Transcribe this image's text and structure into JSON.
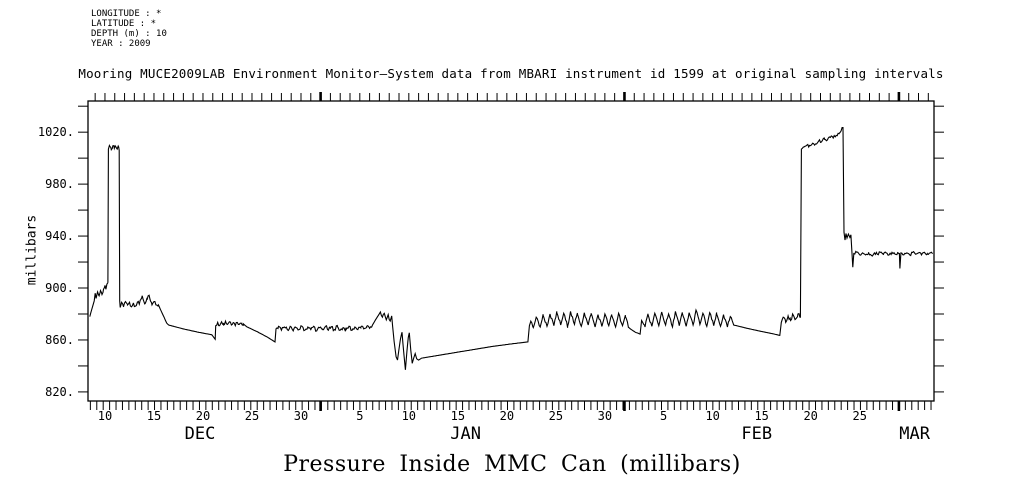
{
  "header": {
    "meta_lines": [
      "LONGITUDE : *",
      "LATITUDE : *",
      "DEPTH (m) : 10",
      "YEAR : 2009"
    ],
    "title": "Mooring MUCE2009LAB Environment Monitor—System data from MBARI instrument id 1599 at original sampling intervals"
  },
  "footer": {
    "caption": "Pressure Inside MMC Can (millibars)"
  },
  "chart_data": {
    "type": "line",
    "title": "Pressure Inside MMC Can (millibars)",
    "xlabel": "",
    "ylabel": "millibars",
    "x_unit": "day of season (Dec 1 = day 1), Dec 2009 - Mar",
    "xlim": [
      8.27,
      94.58
    ],
    "ylim": [
      813,
      1044
    ],
    "grid": false,
    "legend": "none",
    "line_color": "#000000",
    "yticks": {
      "minor_step": 20,
      "labeled": [
        {
          "value": 820,
          "label": "820."
        },
        {
          "value": 860,
          "label": "860."
        },
        {
          "value": 900,
          "label": "900."
        },
        {
          "value": 940,
          "label": "940."
        },
        {
          "value": 980,
          "label": "980."
        },
        {
          "value": 1020,
          "label": "1020."
        }
      ]
    },
    "xticks": {
      "top_step_days": 1,
      "bottom_step_days": 0.6547,
      "month_start_days": [
        32,
        63,
        91
      ],
      "labeled_days": [
        {
          "day": 10,
          "label": "10"
        },
        {
          "day": 15,
          "label": "15"
        },
        {
          "day": 20,
          "label": "20"
        },
        {
          "day": 25,
          "label": "25"
        },
        {
          "day": 30,
          "label": "30"
        },
        {
          "day": 36,
          "label": "5"
        },
        {
          "day": 41,
          "label": "10"
        },
        {
          "day": 46,
          "label": "15"
        },
        {
          "day": 51,
          "label": "20"
        },
        {
          "day": 56,
          "label": "25"
        },
        {
          "day": 61,
          "label": "30"
        },
        {
          "day": 67,
          "label": "5"
        },
        {
          "day": 72,
          "label": "10"
        },
        {
          "day": 77,
          "label": "15"
        },
        {
          "day": 82,
          "label": "20"
        },
        {
          "day": 87,
          "label": "25"
        }
      ]
    },
    "months": [
      {
        "label": "DEC",
        "day": 19.7
      },
      {
        "label": "JAN",
        "day": 46.8
      },
      {
        "label": "FEB",
        "day": 76.5
      },
      {
        "label": "MAR",
        "day": 92.6
      }
    ],
    "series": [
      {
        "name": "pressure_millibars",
        "points": [
          [
            8.45,
            878
          ],
          [
            8.6,
            882
          ],
          [
            8.75,
            886
          ],
          [
            8.9,
            890
          ],
          [
            9.0,
            896
          ],
          [
            9.1,
            892
          ],
          [
            9.25,
            897
          ],
          [
            9.4,
            894
          ],
          [
            9.55,
            898
          ],
          [
            9.7,
            895
          ],
          [
            9.85,
            899
          ],
          [
            10.0,
            902
          ],
          [
            10.1,
            899
          ],
          [
            10.2,
            903
          ],
          [
            10.3,
            904
          ],
          [
            10.35,
            1007
          ],
          [
            10.5,
            1009
          ],
          [
            10.65,
            1006.5
          ],
          [
            10.8,
            1009.5
          ],
          [
            10.95,
            1007.5
          ],
          [
            11.1,
            1009
          ],
          [
            11.25,
            1007
          ],
          [
            11.4,
            1008.5
          ],
          [
            11.45,
            1006
          ],
          [
            11.5,
            890
          ],
          [
            11.55,
            885
          ],
          [
            11.7,
            889
          ],
          [
            11.9,
            886
          ],
          [
            12.1,
            889.5
          ],
          [
            12.3,
            887
          ],
          [
            12.5,
            889
          ],
          [
            12.7,
            885.5
          ],
          [
            12.9,
            888.5
          ],
          [
            13.1,
            886
          ],
          [
            13.3,
            889
          ],
          [
            13.5,
            887.5
          ],
          [
            13.65,
            891
          ],
          [
            13.8,
            894
          ],
          [
            13.95,
            890
          ],
          [
            14.1,
            888
          ],
          [
            14.3,
            891
          ],
          [
            14.5,
            894.5
          ],
          [
            14.65,
            890
          ],
          [
            14.8,
            887
          ],
          [
            15.0,
            889.5
          ],
          [
            15.2,
            887
          ],
          [
            15.45,
            887
          ],
          [
            16.3,
            873
          ],
          [
            16.5,
            871.5
          ],
          [
            18.0,
            868.5
          ],
          [
            19.5,
            866
          ],
          [
            20.9,
            864
          ],
          [
            21.25,
            860.5
          ],
          [
            21.3,
            871
          ],
          [
            21.5,
            873.5
          ],
          [
            21.7,
            871
          ],
          [
            21.9,
            874
          ],
          [
            22.1,
            871.5
          ],
          [
            22.3,
            874.5
          ],
          [
            22.5,
            872
          ],
          [
            22.7,
            874
          ],
          [
            22.9,
            871.5
          ],
          [
            23.1,
            873.5
          ],
          [
            23.3,
            871
          ],
          [
            23.5,
            873.5
          ],
          [
            23.7,
            872
          ],
          [
            23.9,
            873
          ],
          [
            24.1,
            872.5
          ],
          [
            24.5,
            870
          ],
          [
            25.5,
            866.5
          ],
          [
            26.5,
            862.5
          ],
          [
            27.35,
            858.5
          ],
          [
            27.45,
            868.5
          ],
          [
            27.7,
            870.5
          ],
          [
            28.0,
            867.5
          ],
          [
            28.3,
            870
          ],
          [
            28.6,
            868
          ],
          [
            28.9,
            870.5
          ],
          [
            29.2,
            867
          ],
          [
            29.5,
            869.5
          ],
          [
            29.8,
            868
          ],
          [
            30.1,
            870.5
          ],
          [
            30.4,
            867.5
          ],
          [
            30.7,
            870
          ],
          [
            31.0,
            868
          ],
          [
            31.3,
            870.5
          ],
          [
            31.6,
            867
          ],
          [
            31.9,
            869.5
          ],
          [
            32.2,
            868
          ],
          [
            32.5,
            870.5
          ],
          [
            32.8,
            867.5
          ],
          [
            33.1,
            870
          ],
          [
            33.4,
            868
          ],
          [
            33.7,
            870.5
          ],
          [
            34.0,
            867.5
          ],
          [
            34.3,
            869.5
          ],
          [
            34.6,
            868
          ],
          [
            34.9,
            870.5
          ],
          [
            35.2,
            867.5
          ],
          [
            35.5,
            870
          ],
          [
            35.8,
            868
          ],
          [
            36.1,
            870
          ],
          [
            36.4,
            868.5
          ],
          [
            36.7,
            870.5
          ],
          [
            37.0,
            869
          ],
          [
            37.3,
            871.5
          ],
          [
            37.6,
            875.5
          ],
          [
            37.9,
            879
          ],
          [
            38.1,
            881.5
          ],
          [
            38.3,
            877.5
          ],
          [
            38.5,
            880.5
          ],
          [
            38.7,
            875.5
          ],
          [
            38.9,
            879.5
          ],
          [
            39.1,
            874.5
          ],
          [
            39.25,
            878.5
          ],
          [
            39.5,
            859
          ],
          [
            39.7,
            847
          ],
          [
            39.85,
            844.5
          ],
          [
            40.0,
            853
          ],
          [
            40.15,
            861
          ],
          [
            40.3,
            866
          ],
          [
            40.5,
            849
          ],
          [
            40.65,
            837
          ],
          [
            40.8,
            851
          ],
          [
            40.95,
            862
          ],
          [
            41.05,
            865.5
          ],
          [
            41.2,
            852
          ],
          [
            41.35,
            842
          ],
          [
            41.5,
            846
          ],
          [
            41.65,
            849.5
          ],
          [
            41.8,
            845.5
          ],
          [
            42.0,
            844.5
          ],
          [
            42.3,
            846
          ],
          [
            43.5,
            847.5
          ],
          [
            45.5,
            850
          ],
          [
            47.5,
            852.5
          ],
          [
            49.5,
            855
          ],
          [
            51.5,
            857
          ],
          [
            53.15,
            858.5
          ],
          [
            53.3,
            871
          ],
          [
            53.45,
            874.5
          ],
          [
            53.7,
            869.5
          ],
          [
            54.0,
            877.5
          ],
          [
            54.4,
            870
          ],
          [
            54.7,
            879
          ],
          [
            55.1,
            870.5
          ],
          [
            55.4,
            880
          ],
          [
            55.8,
            871
          ],
          [
            56.1,
            881
          ],
          [
            56.5,
            871.5
          ],
          [
            56.8,
            880.5
          ],
          [
            57.2,
            870.5
          ],
          [
            57.5,
            882
          ],
          [
            57.9,
            872
          ],
          [
            58.2,
            880
          ],
          [
            58.6,
            870.5
          ],
          [
            58.9,
            881
          ],
          [
            59.3,
            871.5
          ],
          [
            59.6,
            880.5
          ],
          [
            60.0,
            870
          ],
          [
            60.3,
            879.5
          ],
          [
            60.7,
            870.5
          ],
          [
            61.0,
            880
          ],
          [
            61.4,
            871
          ],
          [
            61.7,
            879
          ],
          [
            62.1,
            870
          ],
          [
            62.4,
            880.5
          ],
          [
            62.8,
            871
          ],
          [
            63.1,
            878
          ],
          [
            63.45,
            869.5
          ],
          [
            63.7,
            868
          ],
          [
            64.1,
            866
          ],
          [
            64.6,
            864.5
          ],
          [
            64.75,
            875
          ],
          [
            65.1,
            870
          ],
          [
            65.4,
            879.5
          ],
          [
            65.8,
            870.5
          ],
          [
            66.1,
            880.5
          ],
          [
            66.5,
            871
          ],
          [
            66.8,
            881.5
          ],
          [
            67.2,
            871.5
          ],
          [
            67.5,
            880
          ],
          [
            67.9,
            870
          ],
          [
            68.2,
            882
          ],
          [
            68.6,
            871
          ],
          [
            68.9,
            880.5
          ],
          [
            69.3,
            870.5
          ],
          [
            69.6,
            881
          ],
          [
            70.0,
            871.5
          ],
          [
            70.3,
            883
          ],
          [
            70.7,
            872
          ],
          [
            71.0,
            880.5
          ],
          [
            71.4,
            870.5
          ],
          [
            71.7,
            881
          ],
          [
            72.1,
            871
          ],
          [
            72.4,
            880
          ],
          [
            72.8,
            870.5
          ],
          [
            73.1,
            879.5
          ],
          [
            73.5,
            870
          ],
          [
            73.8,
            878
          ],
          [
            74.15,
            871.5
          ],
          [
            75.5,
            869
          ],
          [
            77.0,
            866.5
          ],
          [
            78.3,
            864.5
          ],
          [
            78.85,
            863.5
          ],
          [
            79.0,
            873.5
          ],
          [
            79.2,
            877.5
          ],
          [
            79.45,
            873.5
          ],
          [
            79.7,
            878.5
          ],
          [
            79.95,
            875
          ],
          [
            80.2,
            879.5
          ],
          [
            80.45,
            876
          ],
          [
            80.7,
            880
          ],
          [
            80.95,
            877.5
          ],
          [
            81.05,
            1007
          ],
          [
            81.3,
            1008.5
          ],
          [
            81.6,
            1010
          ],
          [
            81.9,
            1009.5
          ],
          [
            82.2,
            1011.5
          ],
          [
            82.5,
            1011
          ],
          [
            82.8,
            1013
          ],
          [
            83.1,
            1012.5
          ],
          [
            83.4,
            1014.5
          ],
          [
            83.7,
            1014
          ],
          [
            84.0,
            1016
          ],
          [
            84.3,
            1015.5
          ],
          [
            84.6,
            1017.5
          ],
          [
            84.9,
            1019
          ],
          [
            85.1,
            1021
          ],
          [
            85.3,
            1023.5
          ],
          [
            85.4,
            943
          ],
          [
            85.5,
            937
          ],
          [
            85.6,
            942
          ],
          [
            85.7,
            938.5
          ],
          [
            85.85,
            941.5
          ],
          [
            86.0,
            939
          ],
          [
            86.1,
            941
          ],
          [
            86.2,
            928
          ],
          [
            86.3,
            916
          ],
          [
            86.4,
            926.5
          ],
          [
            86.7,
            927.5
          ],
          [
            87.0,
            925.5
          ],
          [
            87.3,
            927
          ],
          [
            87.6,
            925.5
          ],
          [
            87.9,
            927.5
          ],
          [
            88.2,
            925
          ],
          [
            88.5,
            927
          ],
          [
            88.8,
            926
          ],
          [
            89.1,
            927.5
          ],
          [
            89.4,
            925.5
          ],
          [
            89.7,
            927
          ],
          [
            90.0,
            925.5
          ],
          [
            90.3,
            927.5
          ],
          [
            90.6,
            926
          ],
          [
            90.9,
            927
          ],
          [
            91.05,
            926.5
          ],
          [
            91.1,
            915
          ],
          [
            91.2,
            927
          ],
          [
            91.5,
            925.5
          ],
          [
            91.8,
            927
          ],
          [
            92.1,
            925.5
          ],
          [
            92.4,
            927.5
          ],
          [
            92.7,
            926
          ],
          [
            93.0,
            927
          ],
          [
            93.3,
            925.5
          ],
          [
            93.6,
            927.5
          ],
          [
            93.9,
            926
          ],
          [
            94.2,
            927
          ],
          [
            94.45,
            926.5
          ]
        ],
        "noisy_ranges": [
          [
            8.9,
            10.3,
            1.5
          ],
          [
            10.35,
            11.45,
            1.5
          ],
          [
            11.6,
            15.4,
            1.5
          ],
          [
            21.4,
            24.1,
            1.3
          ],
          [
            27.6,
            37.2,
            1.5
          ],
          [
            37.9,
            39.2,
            1.5
          ],
          [
            53.5,
            63.4,
            1.2
          ],
          [
            65.0,
            74.0,
            1.2
          ],
          [
            79.1,
            80.9,
            1.5
          ],
          [
            81.2,
            85.3,
            1.5
          ],
          [
            86.5,
            94.4,
            1.2
          ]
        ]
      }
    ]
  }
}
